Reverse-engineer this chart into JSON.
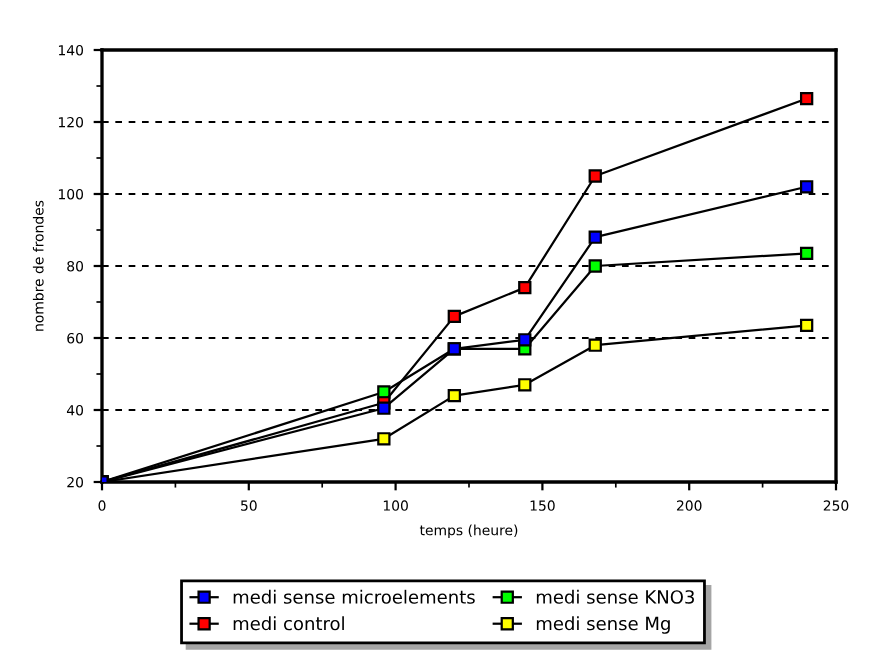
{
  "chart_data": {
    "type": "line",
    "xlabel": "temps (heure)",
    "ylabel": "nombre de frondes",
    "x": [
      0,
      96,
      120,
      144,
      168,
      240
    ],
    "series": [
      {
        "name": "medi sense microelements",
        "color": "#0000ff",
        "values": [
          20,
          40.5,
          57,
          59.5,
          88,
          102
        ]
      },
      {
        "name": "medi control",
        "color": "#ff0000",
        "values": [
          20,
          42,
          66,
          74,
          105,
          126.5
        ]
      },
      {
        "name": "medi sense KNO3",
        "color": "#00ff00",
        "values": [
          20,
          45,
          57,
          57,
          80,
          83.5
        ]
      },
      {
        "name": "medi sense Mg",
        "color": "#ffff00",
        "values": [
          20,
          32,
          44,
          47,
          58,
          63.5
        ]
      }
    ],
    "xlim": [
      0,
      250
    ],
    "xticks": [
      0,
      50,
      100,
      150,
      200,
      250
    ],
    "ylim": [
      20,
      140
    ],
    "yticks": [
      20,
      40,
      60,
      80,
      100,
      120,
      140
    ],
    "grid": "y",
    "legend": "bottom",
    "marker": "square",
    "line_style": "solid"
  }
}
